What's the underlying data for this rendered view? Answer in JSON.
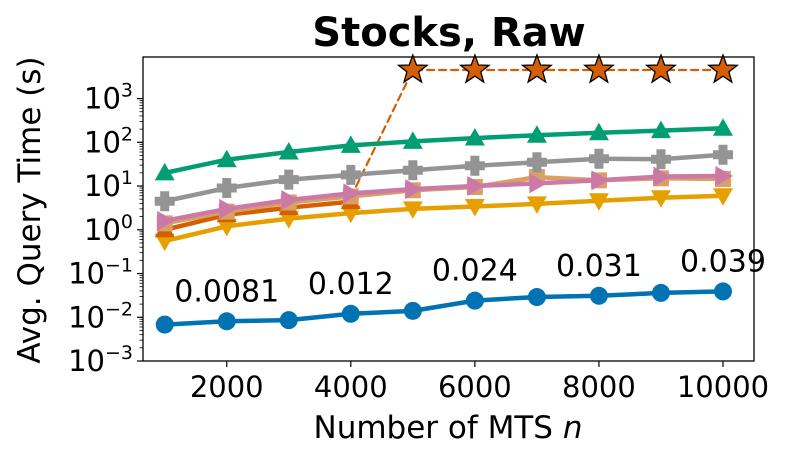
{
  "chart_data": {
    "type": "line",
    "title": "Stocks, Raw",
    "xlabel": "Number of MTS",
    "xlabel_var": "n",
    "ylabel": "Avg. Query Time (s)",
    "yscale": "log",
    "xlim": [
      650,
      10500
    ],
    "ylim_exp": [
      -3,
      3.95
    ],
    "x_ticks": [
      2000,
      4000,
      6000,
      8000,
      10000
    ],
    "x_tick_labels": [
      "2000",
      "4000",
      "6000",
      "8000",
      "10000"
    ],
    "y_ticks": [
      {
        "base": "10",
        "exp": "−3",
        "value": 0.001
      },
      {
        "base": "10",
        "exp": "−2",
        "value": 0.01
      },
      {
        "base": "10",
        "exp": "−1",
        "value": 0.1
      },
      {
        "base": "10",
        "exp": "0",
        "value": 1
      },
      {
        "base": "10",
        "exp": "1",
        "value": 10
      },
      {
        "base": "10",
        "exp": "2",
        "value": 100
      },
      {
        "base": "10",
        "exp": "3",
        "value": 1000
      }
    ],
    "x": [
      1000,
      2000,
      3000,
      4000,
      5000,
      6000,
      7000,
      8000,
      9000,
      10000
    ],
    "series": [
      {
        "name": "orange-down-triangle",
        "color": "#E69F00",
        "marker": "triangle-down",
        "dashed": false,
        "values": [
          0.55,
          1.2,
          1.8,
          2.4,
          3.0,
          3.4,
          3.9,
          4.6,
          5.4,
          6.0
        ]
      },
      {
        "name": "vermilion-up-triangle",
        "color": "#D55E00",
        "marker": "triangle-up",
        "dashed": false,
        "values": [
          1.0,
          2.2,
          3.2,
          4.4,
          null,
          null,
          null,
          null,
          null,
          null
        ]
      },
      {
        "name": "vermilion-star-timeout",
        "color": "#D55E00",
        "marker": "star",
        "dashed": true,
        "values": [
          null,
          null,
          null,
          5.5,
          4500,
          4500,
          4500,
          4500,
          4500,
          4500
        ]
      },
      {
        "name": "light-orange-square",
        "color": "#D9A066",
        "marker": "square",
        "dashed": false,
        "values": [
          1.4,
          2.6,
          4.2,
          5.8,
          8.0,
          9.5,
          16.0,
          13.5,
          15.0,
          14.5
        ]
      },
      {
        "name": "pink-right-triangle",
        "color": "#CC79A7",
        "marker": "triangle-right",
        "dashed": false,
        "values": [
          1.6,
          3.0,
          4.8,
          6.8,
          8.5,
          10.0,
          11.5,
          13.5,
          16.5,
          17.0
        ]
      },
      {
        "name": "gray-plus",
        "color": "#949494",
        "marker": "plus",
        "dashed": false,
        "values": [
          4.5,
          9.0,
          14.0,
          18.0,
          23.0,
          29.0,
          35.0,
          42.0,
          41.0,
          52.0
        ]
      },
      {
        "name": "green-up-triangle",
        "color": "#029E73",
        "marker": "triangle-up",
        "dashed": false,
        "values": [
          20.0,
          40.0,
          60.0,
          85.0,
          105.0,
          125.0,
          145.0,
          165.0,
          185.0,
          210.0
        ]
      },
      {
        "name": "blue-circle",
        "color": "#0173B2",
        "marker": "circle",
        "dashed": false,
        "values": [
          0.0068,
          0.0081,
          0.0086,
          0.012,
          0.014,
          0.024,
          0.029,
          0.031,
          0.036,
          0.039
        ]
      }
    ],
    "annotations": [
      {
        "text": "0.0081",
        "x": 2000,
        "y": 0.0081
      },
      {
        "text": "0.012",
        "x": 4000,
        "y": 0.012
      },
      {
        "text": "0.024",
        "x": 6000,
        "y": 0.024
      },
      {
        "text": "0.031",
        "x": 8000,
        "y": 0.031
      },
      {
        "text": "0.039",
        "x": 10000,
        "y": 0.039
      }
    ]
  }
}
